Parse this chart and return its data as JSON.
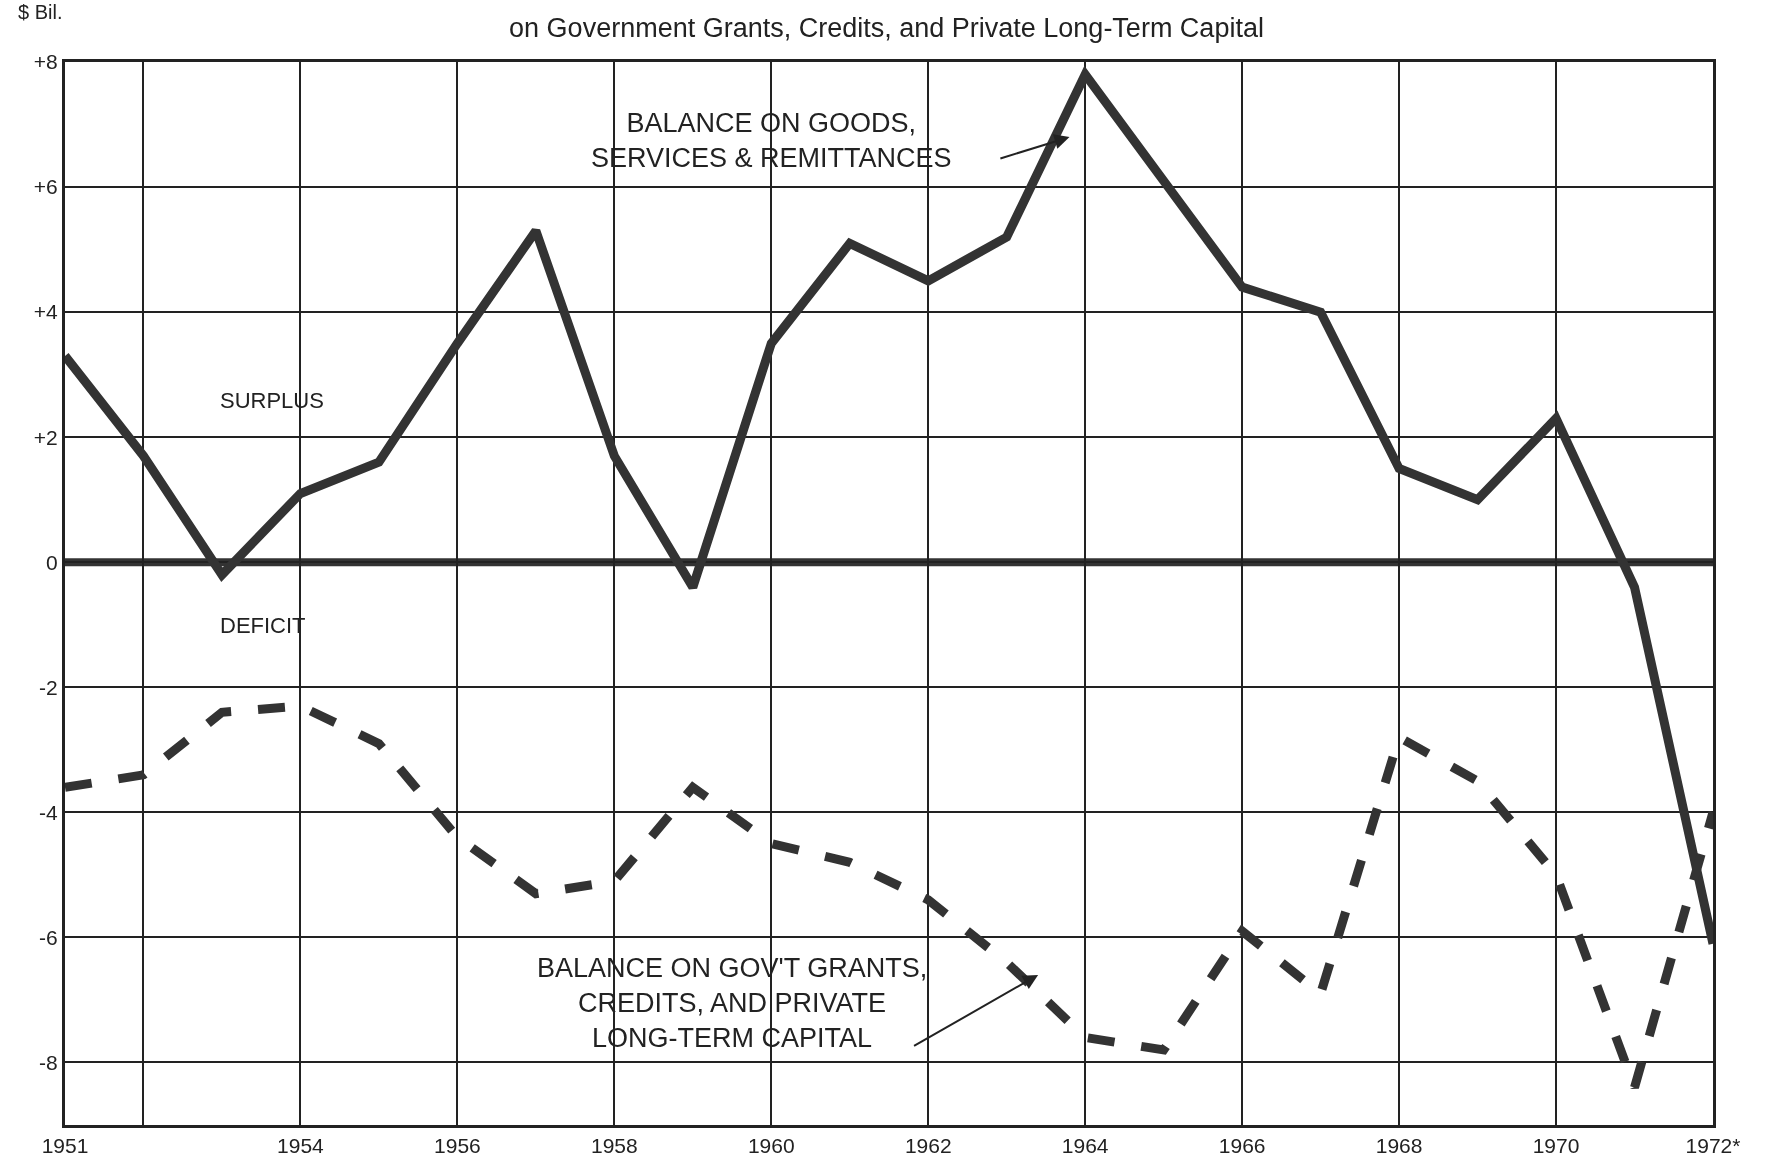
{
  "chart_data": {
    "type": "line",
    "title": "on Government Grants, Credits, and Private Long-Term Capital",
    "ylabel": "$ Bil.",
    "x": [
      1951,
      1952,
      1953,
      1954,
      1955,
      1956,
      1957,
      1958,
      1959,
      1960,
      1961,
      1962,
      1963,
      1964,
      1965,
      1966,
      1967,
      1968,
      1969,
      1970,
      1971,
      1972
    ],
    "series": [
      {
        "name": "BALANCE ON GOODS, SERVICES & REMITTANCES",
        "color": "#333333",
        "line_style": "solid",
        "values": [
          3.3,
          1.7,
          -0.2,
          1.1,
          1.6,
          3.5,
          5.3,
          1.7,
          -0.4,
          3.5,
          5.1,
          4.5,
          5.2,
          7.8,
          6.1,
          4.4,
          4.0,
          1.5,
          1.0,
          2.3,
          -0.4,
          -6.1
        ]
      },
      {
        "name": "BALANCE ON GOV'T GRANTS, CREDITS, AND PRIVATE LONG-TERM CAPITAL",
        "color": "#333333",
        "line_style": "dashed",
        "values": [
          -3.6,
          -3.4,
          -2.4,
          -2.3,
          -2.9,
          -4.4,
          -5.3,
          -5.1,
          -3.6,
          -4.5,
          -4.8,
          -5.4,
          -6.4,
          -7.6,
          -7.8,
          -5.9,
          -6.9,
          -2.8,
          -3.5,
          -5.0,
          -8.4,
          -4.0
        ]
      }
    ],
    "xlim": [
      1951,
      1972
    ],
    "xticks": [
      1951,
      {
        "value": 1952,
        "label": null
      },
      1954,
      1956,
      1958,
      1960,
      1962,
      1964,
      1966,
      1968,
      1970,
      {
        "value": 1972,
        "label": "1972*"
      }
    ],
    "ylim": [
      -9,
      8
    ],
    "yticks": [
      {
        "value": -8,
        "label": "-8"
      },
      {
        "value": -6,
        "label": "-6"
      },
      {
        "value": -4,
        "label": "-4"
      },
      {
        "value": -2,
        "label": "-2"
      },
      0,
      {
        "value": 2,
        "label": "+2"
      },
      {
        "value": 4,
        "label": "+4"
      },
      {
        "value": 6,
        "label": "+6"
      },
      {
        "value": 8,
        "label": "+8"
      }
    ],
    "ref_lines": [
      {
        "axis": "y",
        "value": 0,
        "color": "#333333"
      }
    ],
    "annotations": [
      "SURPLUS",
      "DEFICIT"
    ],
    "grid": true,
    "legend": false,
    "marker": "none"
  }
}
